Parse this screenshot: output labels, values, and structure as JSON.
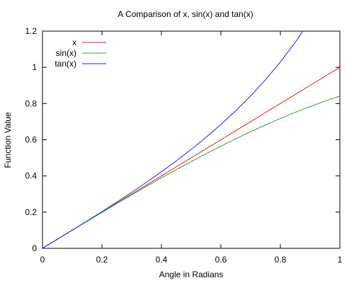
{
  "chart_data": {
    "type": "line",
    "title": "A Comparison of x, sin(x) and tan(x)",
    "xlabel": "Angle in Radians",
    "ylabel": "Function Value",
    "xlim": [
      0,
      1
    ],
    "ylim": [
      0,
      1.2
    ],
    "xticks": [
      0,
      0.2,
      0.4,
      0.6,
      0.8,
      1
    ],
    "xtick_labels": [
      "0",
      "0.2",
      "0.4",
      "0.6",
      "0.8",
      "1"
    ],
    "yticks": [
      0,
      0.2,
      0.4,
      0.6,
      0.8,
      1,
      1.2
    ],
    "ytick_labels": [
      "0",
      "0.2",
      "0.4",
      "0.6",
      "0.8",
      "1",
      "1.2"
    ],
    "grid": false,
    "legend_position": "top-left",
    "x": [
      0,
      0.05,
      0.1,
      0.15,
      0.2,
      0.25,
      0.3,
      0.35,
      0.4,
      0.45,
      0.5,
      0.55,
      0.6,
      0.65,
      0.7,
      0.75,
      0.8,
      0.85,
      0.88,
      0.9,
      0.95,
      1
    ],
    "series": [
      {
        "name": "x",
        "color": "#e41a1c",
        "values": [
          0,
          0.05,
          0.1,
          0.15,
          0.2,
          0.25,
          0.3,
          0.35,
          0.4,
          0.45,
          0.5,
          0.55,
          0.6,
          0.65,
          0.7,
          0.75,
          0.8,
          0.85,
          0.88,
          0.9,
          0.95,
          1
        ]
      },
      {
        "name": "sin(x)",
        "color": "#2ca02c",
        "values": [
          0,
          0.05,
          0.0998,
          0.1494,
          0.1987,
          0.2474,
          0.2955,
          0.3429,
          0.3894,
          0.435,
          0.4794,
          0.5227,
          0.5646,
          0.6052,
          0.6442,
          0.6816,
          0.7174,
          0.7513,
          0.7707,
          0.7833,
          0.8134,
          0.8415
        ]
      },
      {
        "name": "tan(x)",
        "color": "#1f1fff",
        "values": [
          0,
          0.05,
          0.1003,
          0.1511,
          0.2027,
          0.2553,
          0.3093,
          0.365,
          0.4228,
          0.4831,
          0.5463,
          0.6131,
          0.6841,
          0.7602,
          0.8423,
          0.9316,
          1.0296,
          1.1383,
          1.2097,
          null,
          null,
          null
        ]
      }
    ]
  }
}
